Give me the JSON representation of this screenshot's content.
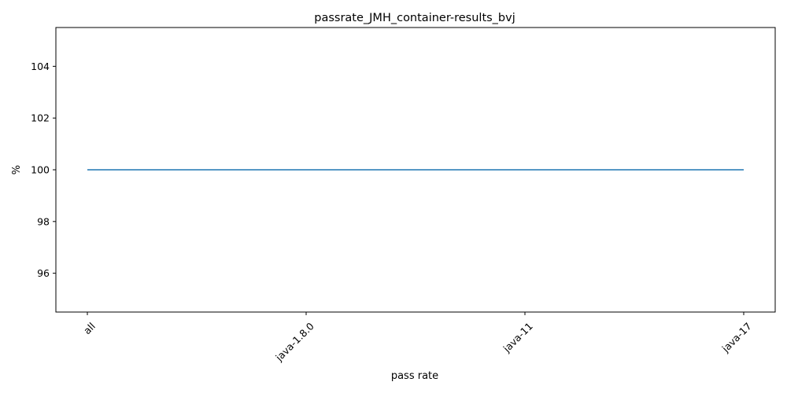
{
  "chart_data": {
    "type": "line",
    "title": "passrate_JMH_container-results_bvj",
    "xlabel": "pass rate",
    "ylabel": "%",
    "categories": [
      "all",
      "java-1.8.0",
      "java-11",
      "java-17"
    ],
    "series": [
      {
        "values": [
          100,
          100,
          100,
          100
        ],
        "color": "#1f77b4"
      }
    ],
    "ylim": [
      94.5,
      105.5
    ],
    "yticks": [
      96,
      98,
      100,
      102,
      104
    ],
    "grid": false,
    "legend": "none"
  }
}
